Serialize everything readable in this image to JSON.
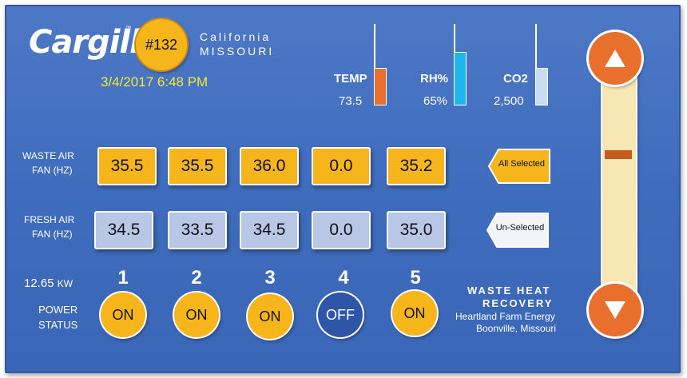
{
  "header": {
    "logo_text": "Cargill",
    "logo_tm": "™",
    "site_number": "#132",
    "location_line1": "California",
    "location_line2": "MISSOURI",
    "datetime": "3/4/2017 6:48 PM"
  },
  "gauges": [
    {
      "label": "TEMP",
      "value": "73.5",
      "color": "#e8702c",
      "fill": 0.45
    },
    {
      "label": "RH%",
      "value": "65%",
      "color": "#1fb6f0",
      "fill": 0.65
    },
    {
      "label": "CO2",
      "value": "2,500",
      "color": "#c9dcf2",
      "fill": 0.45
    }
  ],
  "waste_air": {
    "label_line1": "WASTE AIR",
    "label_line2": "FAN (HZ)",
    "values": [
      "35.5",
      "35.5",
      "36.0",
      "0.0",
      "35.2"
    ],
    "select_button": "All Selected"
  },
  "fresh_air": {
    "label_line1": "FRESH AIR",
    "label_line2": "FAN (HZ)",
    "values": [
      "34.5",
      "33.5",
      "34.5",
      "0.0",
      "35.0"
    ],
    "select_button": "Un-Selected"
  },
  "power": {
    "kw_value": "12.65",
    "kw_unit": "KW",
    "label_line1": "POWER",
    "label_line2": "STATUS",
    "fans": [
      {
        "number": "1",
        "status": "ON"
      },
      {
        "number": "2",
        "status": "ON"
      },
      {
        "number": "3",
        "status": "ON"
      },
      {
        "number": "4",
        "status": "OFF"
      },
      {
        "number": "5",
        "status": "ON"
      }
    ]
  },
  "footer_info": {
    "title_line1": "WASTE HEAT",
    "title_line2": "RECOVERY",
    "org": "Heartland Farm Energy",
    "place": "Boonville, Missouri"
  },
  "slider": {
    "level": 0.41,
    "up_icon": "triangle-up-icon",
    "down_icon": "triangle-down-icon"
  },
  "colors": {
    "panel": "#4072c2",
    "accent_yellow": "#f6b51b",
    "accent_orange": "#e8702c",
    "tile_blue": "#b8c7e6",
    "date_text": "#f3ea33"
  }
}
